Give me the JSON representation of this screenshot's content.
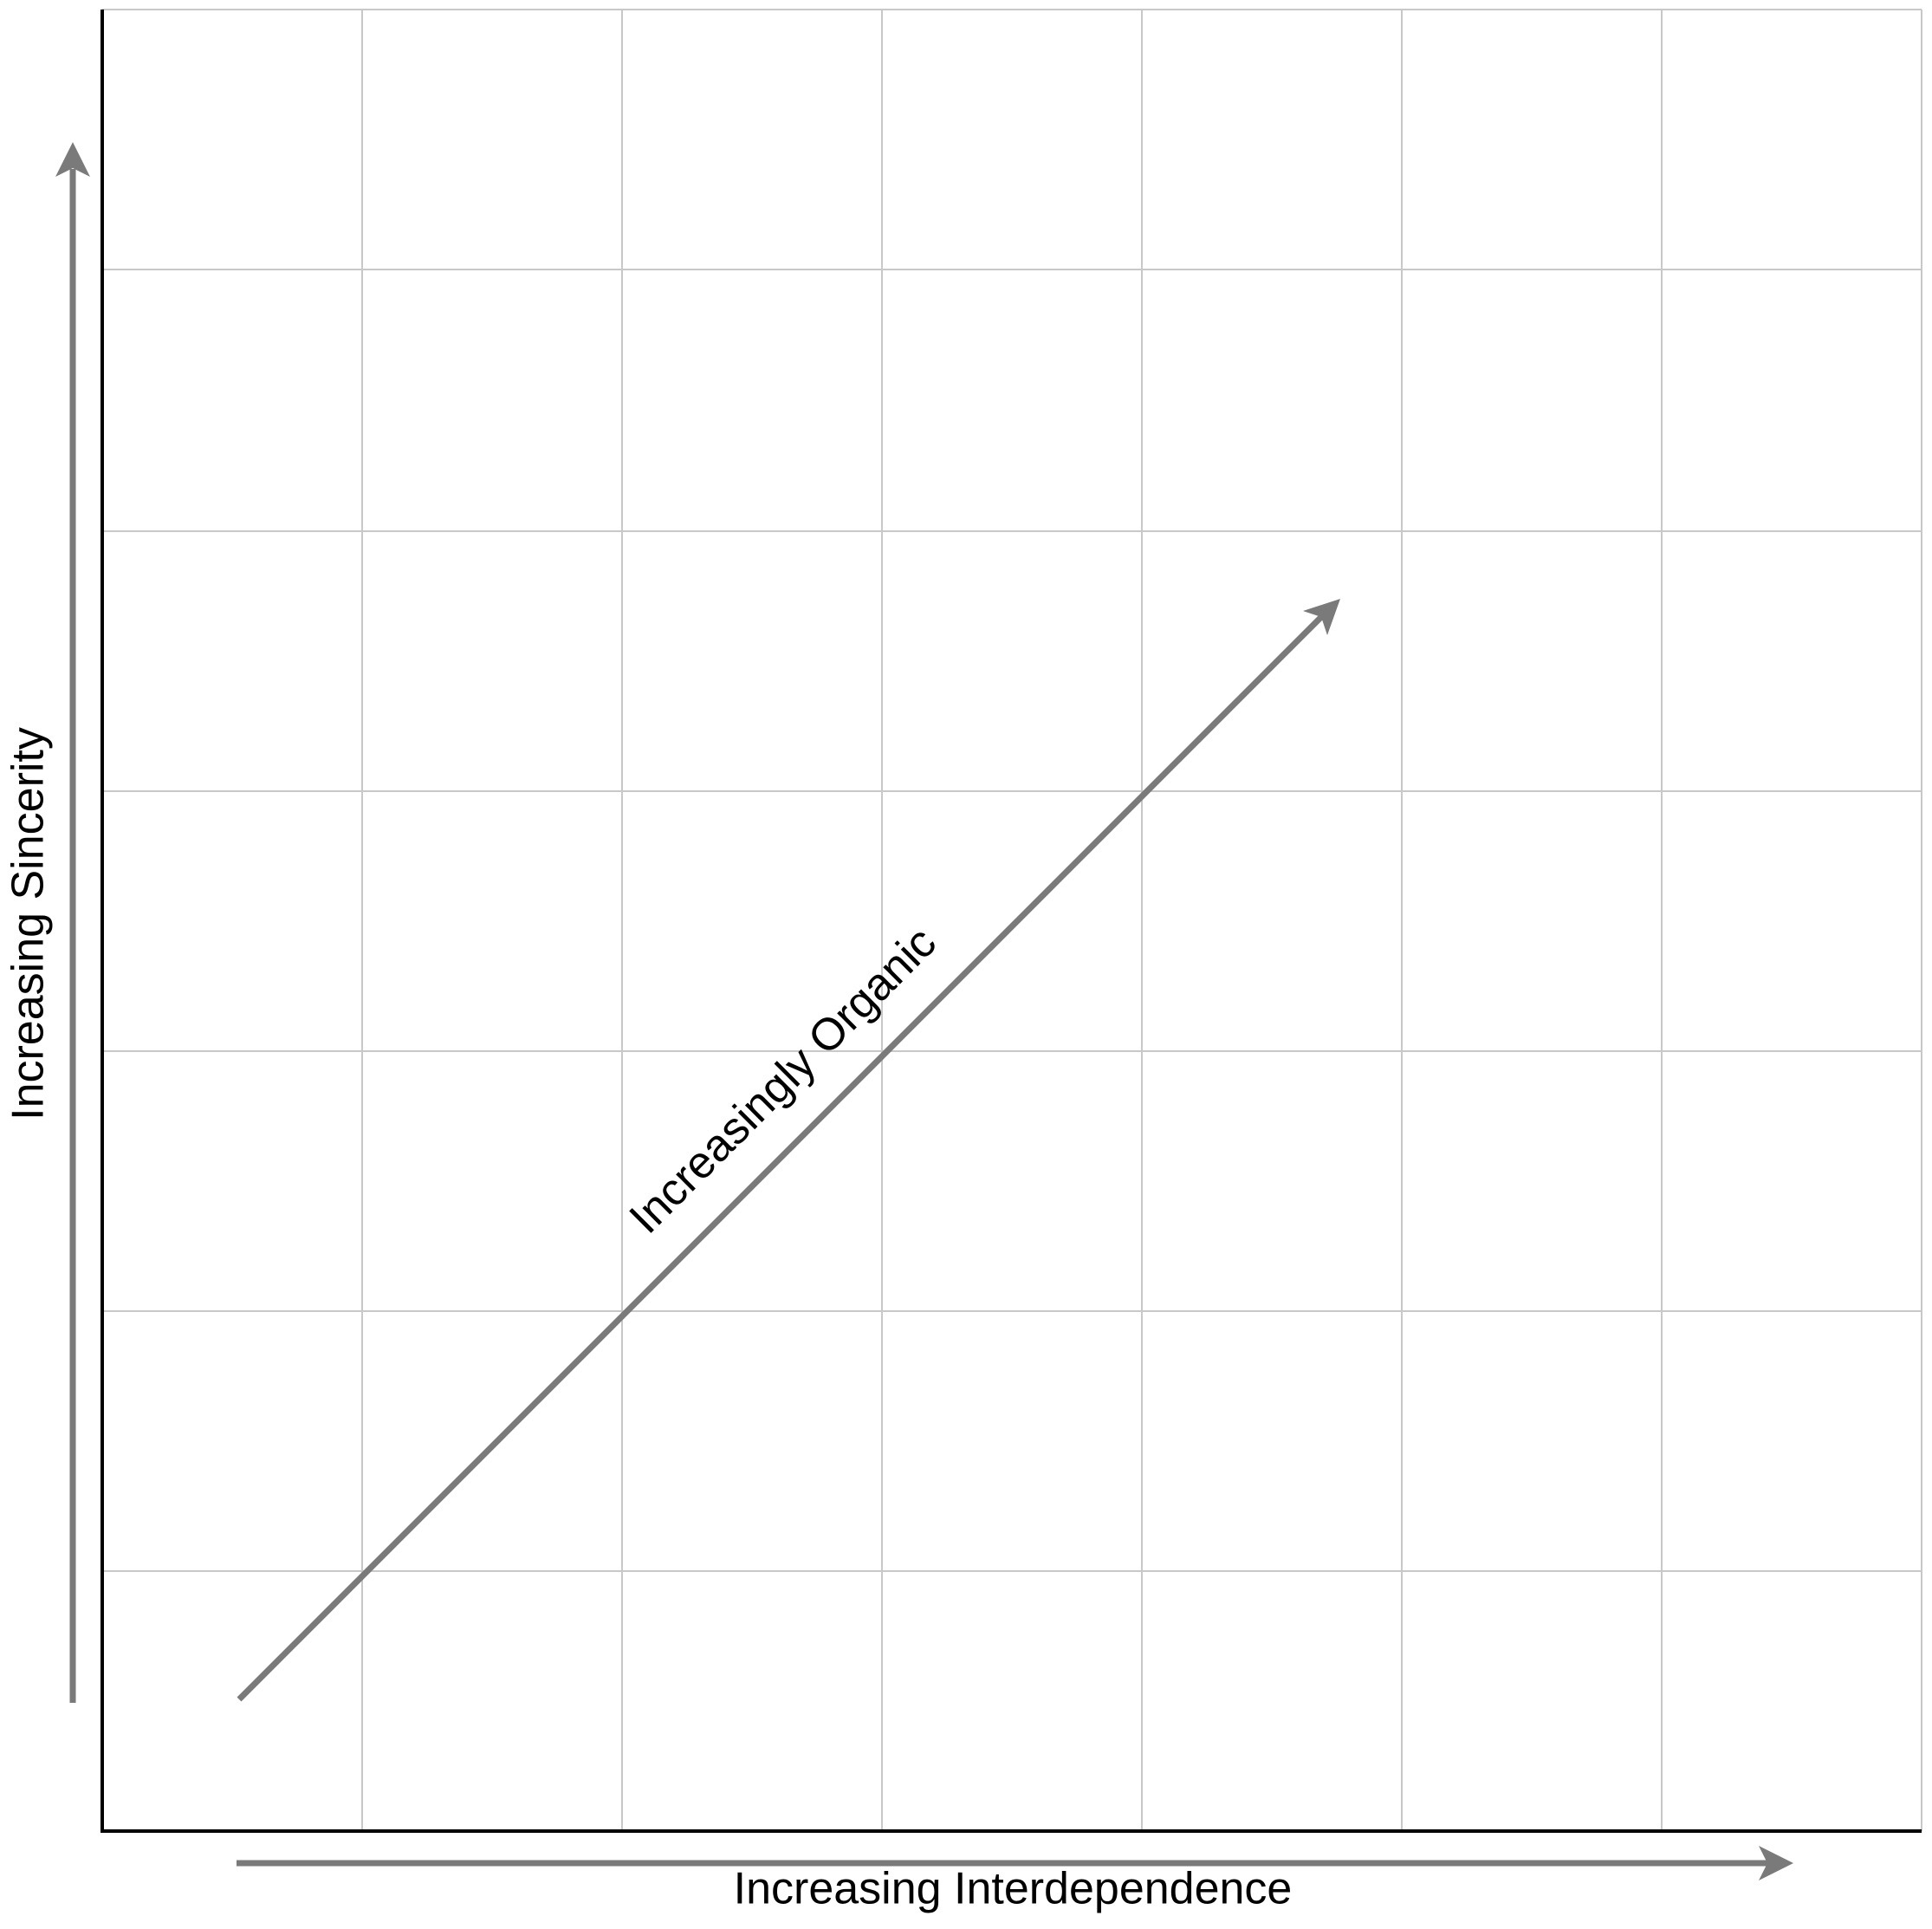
{
  "axes": {
    "x_label": "Increasing Interdependence",
    "y_label": "Increasing Sincerity"
  },
  "diagonal": {
    "label": "Increasingly Organic"
  }
}
